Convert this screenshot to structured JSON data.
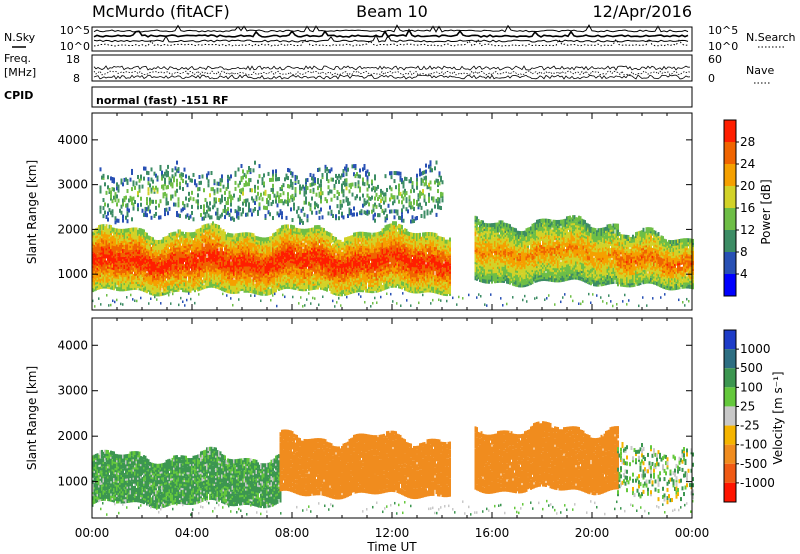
{
  "header": {
    "station": "McMurdo (fitACF)",
    "beam": "Beam 10",
    "date": "12/Apr/2016"
  },
  "left_labels": {
    "nsky": "N.Sky",
    "freq": "Freq.",
    "freq_unit": "[MHz]",
    "cpid": "CPID"
  },
  "right_labels": {
    "nsearch": "N.Search",
    "nave": "Nave"
  },
  "noise_panel": {
    "left_ticks": [
      "10^5",
      "10^0"
    ],
    "right_ticks": [
      "10^5",
      "10^0"
    ]
  },
  "freq_panel": {
    "left_ticks": [
      "18",
      "8"
    ],
    "right_ticks": [
      "60",
      "0"
    ]
  },
  "cpid_text": "normal (fast) -151 RF",
  "chart_data": [
    {
      "type": "heatmap",
      "variable": "Power",
      "ylabel": "Slant Range [km]",
      "xlabel": "Time UT",
      "x_ticks": [
        "00:00",
        "04:00",
        "08:00",
        "12:00",
        "16:00",
        "20:00",
        "00:00"
      ],
      "y_ticks": [
        1000,
        2000,
        3000,
        4000
      ],
      "ylim": [
        200,
        4600
      ],
      "xlim_hours": [
        0,
        24
      ],
      "colorbar": {
        "label": "Power [dB]",
        "ticks": [
          "4",
          "8",
          "12",
          "16",
          "20",
          "24",
          "28"
        ],
        "range": [
          0,
          30
        ],
        "colors": [
          "#0000ff",
          "#2850b4",
          "#3c8c64",
          "#6ebe46",
          "#d2d228",
          "#f5a000",
          "#f06400",
          "#ff1e00"
        ]
      },
      "observed_bands": [
        {
          "t_start": 0.0,
          "t_end": 14.3,
          "r_low": 600,
          "r_high": 1900,
          "mean_power_db": 26
        },
        {
          "t_start": 15.3,
          "t_end": 21.0,
          "r_low": 800,
          "r_high": 2100,
          "mean_power_db": 20
        },
        {
          "t_start": 21.0,
          "t_end": 24.0,
          "r_low": 700,
          "r_high": 1800,
          "mean_power_db": 22
        },
        {
          "t_start": 0.3,
          "t_end": 14.0,
          "r_low": 2200,
          "r_high": 3300,
          "mean_power_db": 12
        }
      ]
    },
    {
      "type": "heatmap",
      "variable": "Velocity",
      "ylabel": "Slant Range [km]",
      "xlabel": "Time UT",
      "x_ticks": [
        "00:00",
        "04:00",
        "08:00",
        "12:00",
        "16:00",
        "20:00",
        "00:00"
      ],
      "y_ticks": [
        1000,
        2000,
        3000,
        4000
      ],
      "ylim": [
        200,
        4600
      ],
      "xlim_hours": [
        0,
        24
      ],
      "colorbar": {
        "label": "Velocity [m s⁻¹]",
        "ticks": [
          "1000",
          "500",
          "100",
          "25",
          "-25",
          "-100",
          "-500",
          "-1000"
        ],
        "colors": [
          "#1e3cc8",
          "#2d6e82",
          "#3c9650",
          "#64c83c",
          "#c8c8c8",
          "#f5b400",
          "#f08c1e",
          "#f05a14",
          "#ff1400"
        ]
      },
      "observed_bands": [
        {
          "t_start": 0.0,
          "t_end": 7.5,
          "r_low": 500,
          "r_high": 1500,
          "mean_velocity_ms": 150
        },
        {
          "t_start": 7.5,
          "t_end": 14.3,
          "r_low": 700,
          "r_high": 1900,
          "mean_velocity_ms": -300
        },
        {
          "t_start": 15.3,
          "t_end": 21.0,
          "r_low": 800,
          "r_high": 2100,
          "mean_velocity_ms": -300
        },
        {
          "t_start": 21.0,
          "t_end": 24.0,
          "r_low": 600,
          "r_high": 1700,
          "mean_velocity_ms": 80
        }
      ]
    }
  ]
}
